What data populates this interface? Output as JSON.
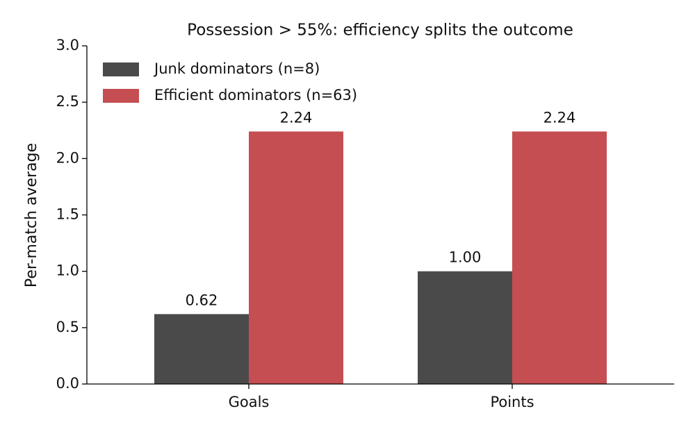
{
  "chart_data": {
    "type": "bar",
    "title": "Possession > 55%: efficiency splits the outcome",
    "ylabel": "Per-match average",
    "categories": [
      "Goals",
      "Points"
    ],
    "series": [
      {
        "name": "Junk dominators (n=8)",
        "color": "#4a4a4a",
        "values": [
          0.62,
          1
        ],
        "value_labels": [
          "0.62",
          "1.00"
        ]
      },
      {
        "name": "Efficient dominators (n=63)",
        "color": "#c44e52",
        "values": [
          2.24,
          2.24
        ],
        "value_labels": [
          "2.24",
          "2.24"
        ]
      }
    ],
    "ylim": [
      0,
      3
    ],
    "yticks": [
      {
        "value": 0,
        "label": "0.0"
      },
      {
        "value": 0.5,
        "label": "0.5"
      },
      {
        "value": 1,
        "label": "1.0"
      },
      {
        "value": 1.5,
        "label": "1.5"
      },
      {
        "value": 2,
        "label": "2.0"
      },
      {
        "value": 2.5,
        "label": "2.5"
      },
      {
        "value": 3,
        "label": "3.0"
      }
    ],
    "legend": "upper left"
  }
}
